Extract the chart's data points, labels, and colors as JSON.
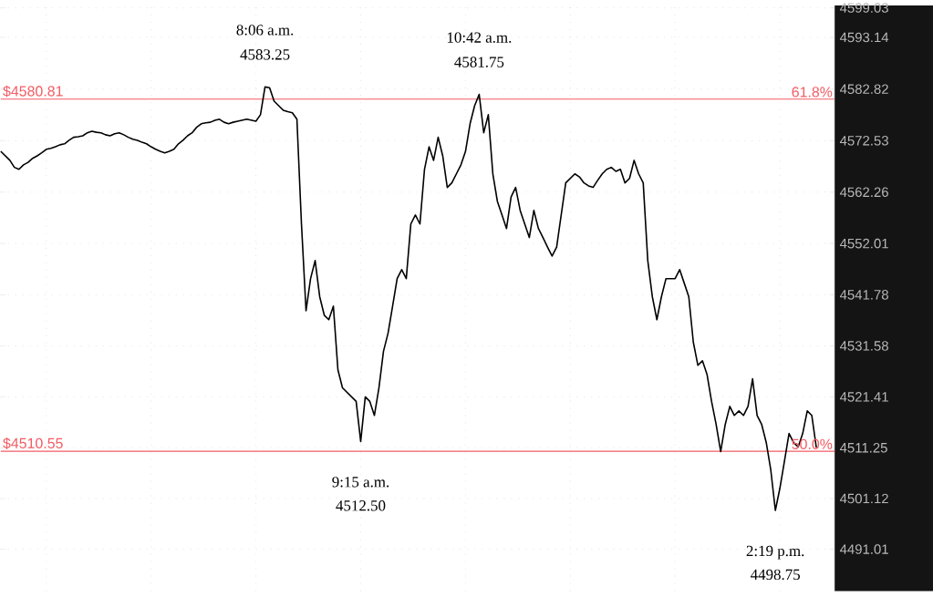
{
  "chart_data": {
    "type": "line",
    "categories": [
      null,
      null,
      null,
      null,
      null,
      null,
      null,
      null,
      null,
      null,
      null,
      null,
      null,
      null,
      null,
      null,
      null,
      null,
      null,
      null,
      null,
      null,
      null,
      null,
      null,
      null,
      null,
      null,
      null,
      null,
      null,
      null,
      null,
      null,
      null,
      null,
      null,
      null,
      null,
      null,
      null,
      null,
      null,
      null,
      null,
      null,
      null,
      null,
      null,
      null,
      null,
      null,
      null,
      null,
      null,
      null,
      null,
      null,
      null,
      null,
      null,
      null,
      null,
      null,
      null,
      null,
      null,
      null,
      null,
      null,
      null,
      null,
      null,
      null,
      null,
      null,
      null,
      null,
      null,
      null,
      null,
      null,
      null,
      null,
      null,
      null,
      null,
      null,
      null,
      null,
      null,
      null,
      null,
      null,
      null,
      null,
      null,
      null,
      null,
      null,
      null,
      null,
      null,
      null,
      null,
      null,
      null,
      null,
      null,
      null,
      null,
      null,
      null,
      null,
      null,
      null,
      null,
      null,
      null,
      null,
      null,
      null,
      null,
      null,
      null,
      null,
      null,
      null,
      null,
      null,
      null,
      null,
      null,
      null,
      null,
      null,
      null,
      null,
      null,
      null,
      null,
      null,
      null,
      null,
      null,
      null,
      null,
      null,
      null,
      null,
      null,
      null,
      null,
      null,
      null,
      null,
      null,
      null,
      null,
      null,
      null,
      null,
      null,
      null,
      null,
      null,
      null,
      null,
      null,
      null,
      null,
      null,
      null,
      null,
      null,
      null,
      null,
      null,
      null,
      null
    ],
    "values": [
      4570.4,
      4569.5,
      4568.6,
      4567.2,
      4566.8,
      4567.7,
      4568.2,
      4569.0,
      4569.5,
      4570.1,
      4570.8,
      4571.0,
      4571.3,
      4571.7,
      4571.9,
      4572.6,
      4573.2,
      4573.3,
      4573.5,
      4574.1,
      4574.4,
      4574.2,
      4574.1,
      4573.7,
      4573.5,
      4573.9,
      4574.1,
      4573.7,
      4573.2,
      4572.8,
      4572.6,
      4572.2,
      4571.9,
      4571.3,
      4570.8,
      4570.4,
      4570.1,
      4570.4,
      4570.8,
      4571.9,
      4572.6,
      4573.5,
      4574.1,
      4575.2,
      4575.9,
      4576.1,
      4576.2,
      4576.6,
      4576.8,
      4576.2,
      4575.9,
      4576.2,
      4576.4,
      4576.6,
      4576.8,
      4576.6,
      4576.4,
      4577.7,
      4583.25,
      4583.1,
      4580.4,
      4579.5,
      4578.6,
      4578.3,
      4578.1,
      4576.8,
      4555.9,
      4538.6,
      4545.0,
      4548.6,
      4541.4,
      4537.7,
      4536.8,
      4539.5,
      4526.8,
      4523.2,
      4522.3,
      4521.4,
      4520.5,
      4512.5,
      4521.4,
      4520.5,
      4517.7,
      4523.2,
      4530.5,
      4534.1,
      4539.5,
      4545.0,
      4546.8,
      4545.0,
      4555.9,
      4557.7,
      4555.9,
      4566.8,
      4571.3,
      4568.6,
      4573.2,
      4569.5,
      4563.2,
      4564.1,
      4565.9,
      4567.7,
      4570.4,
      4575.9,
      4579.5,
      4581.75,
      4574.1,
      4577.7,
      4565.9,
      4560.4,
      4557.7,
      4555.0,
      4561.3,
      4563.2,
      4558.6,
      4555.9,
      4553.2,
      4558.6,
      4555.0,
      4553.2,
      4551.3,
      4549.5,
      4551.3,
      4557.7,
      4564.1,
      4565.0,
      4565.9,
      4565.3,
      4564.1,
      4563.5,
      4563.2,
      4564.6,
      4565.9,
      4566.8,
      4567.2,
      4566.4,
      4566.8,
      4564.1,
      4565.0,
      4568.6,
      4565.9,
      4564.1,
      4548.6,
      4541.4,
      4536.8,
      4541.4,
      4545.0,
      4545.0,
      4545.0,
      4546.8,
      4544.1,
      4541.4,
      4532.3,
      4527.7,
      4528.6,
      4525.9,
      4520.5,
      4515.9,
      4510.5,
      4515.9,
      4519.5,
      4517.7,
      4518.6,
      4517.7,
      4519.5,
      4525.0,
      4517.7,
      4515.9,
      4512.3,
      4506.8,
      4498.75,
      4503.2,
      4508.6,
      4514.1,
      4512.3,
      4511.4,
      4514.1,
      4518.6,
      4517.7,
      4511.25
    ],
    "color": "#000000",
    "ylim": [
      4482.65,
      4599.5
    ],
    "yticks": [
      4491.01,
      4501.12,
      4511.25,
      4521.41,
      4531.58,
      4541.78,
      4552.01,
      4562.26,
      4572.53,
      4582.82,
      4593.14,
      4599.03
    ],
    "grid": true,
    "tick_labels": "y",
    "ref_lines": [
      {
        "axis": "y",
        "value": 4580.81,
        "label": "$4580.81",
        "color": "#f25c64"
      },
      {
        "axis": "y",
        "value": 4510.55,
        "label": "$4510.55",
        "color": "#f25c64"
      }
    ],
    "annotations": [
      "8:06 a.m.",
      {
        "text": "4583.25",
        "y": 4583.25
      },
      {
        "text": "9:15 a.m.",
        "y": 4512.5
      },
      "4512.50",
      "10:42 a.m.",
      {
        "text": "4581.75",
        "y": 4581.75
      },
      {
        "text": "2:19 p.m.",
        "y": 4498.75
      },
      "4498.75",
      {
        "text": "61.8%",
        "y": 4580.81
      },
      {
        "text": "50.0%",
        "y": 4510.55
      }
    ]
  }
}
